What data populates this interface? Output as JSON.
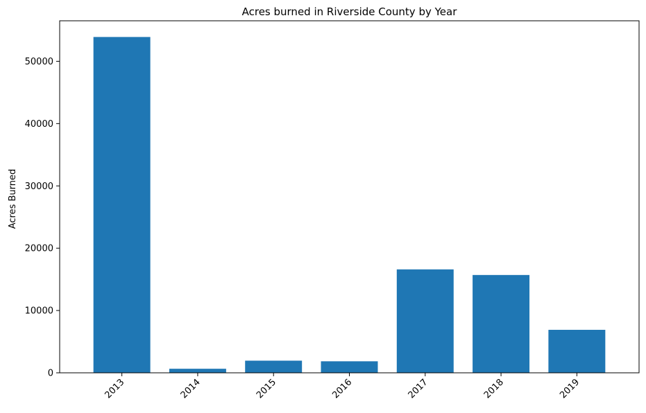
{
  "chart_data": {
    "type": "bar",
    "title": "Acres burned in Riverside County by Year",
    "xlabel": "",
    "ylabel": "Acres Burned",
    "categories": [
      "2013",
      "2014",
      "2015",
      "2016",
      "2017",
      "2018",
      "2019"
    ],
    "values": [
      53900,
      650,
      1950,
      1850,
      16600,
      15700,
      6900
    ],
    "ylim": [
      0,
      56500
    ],
    "yticks": [
      0,
      10000,
      20000,
      30000,
      40000,
      50000
    ],
    "ytick_labels": [
      "0",
      "10000",
      "20000",
      "30000",
      "40000",
      "50000"
    ],
    "grid": false,
    "legend": "none",
    "bar_color": "#1f77b4"
  }
}
